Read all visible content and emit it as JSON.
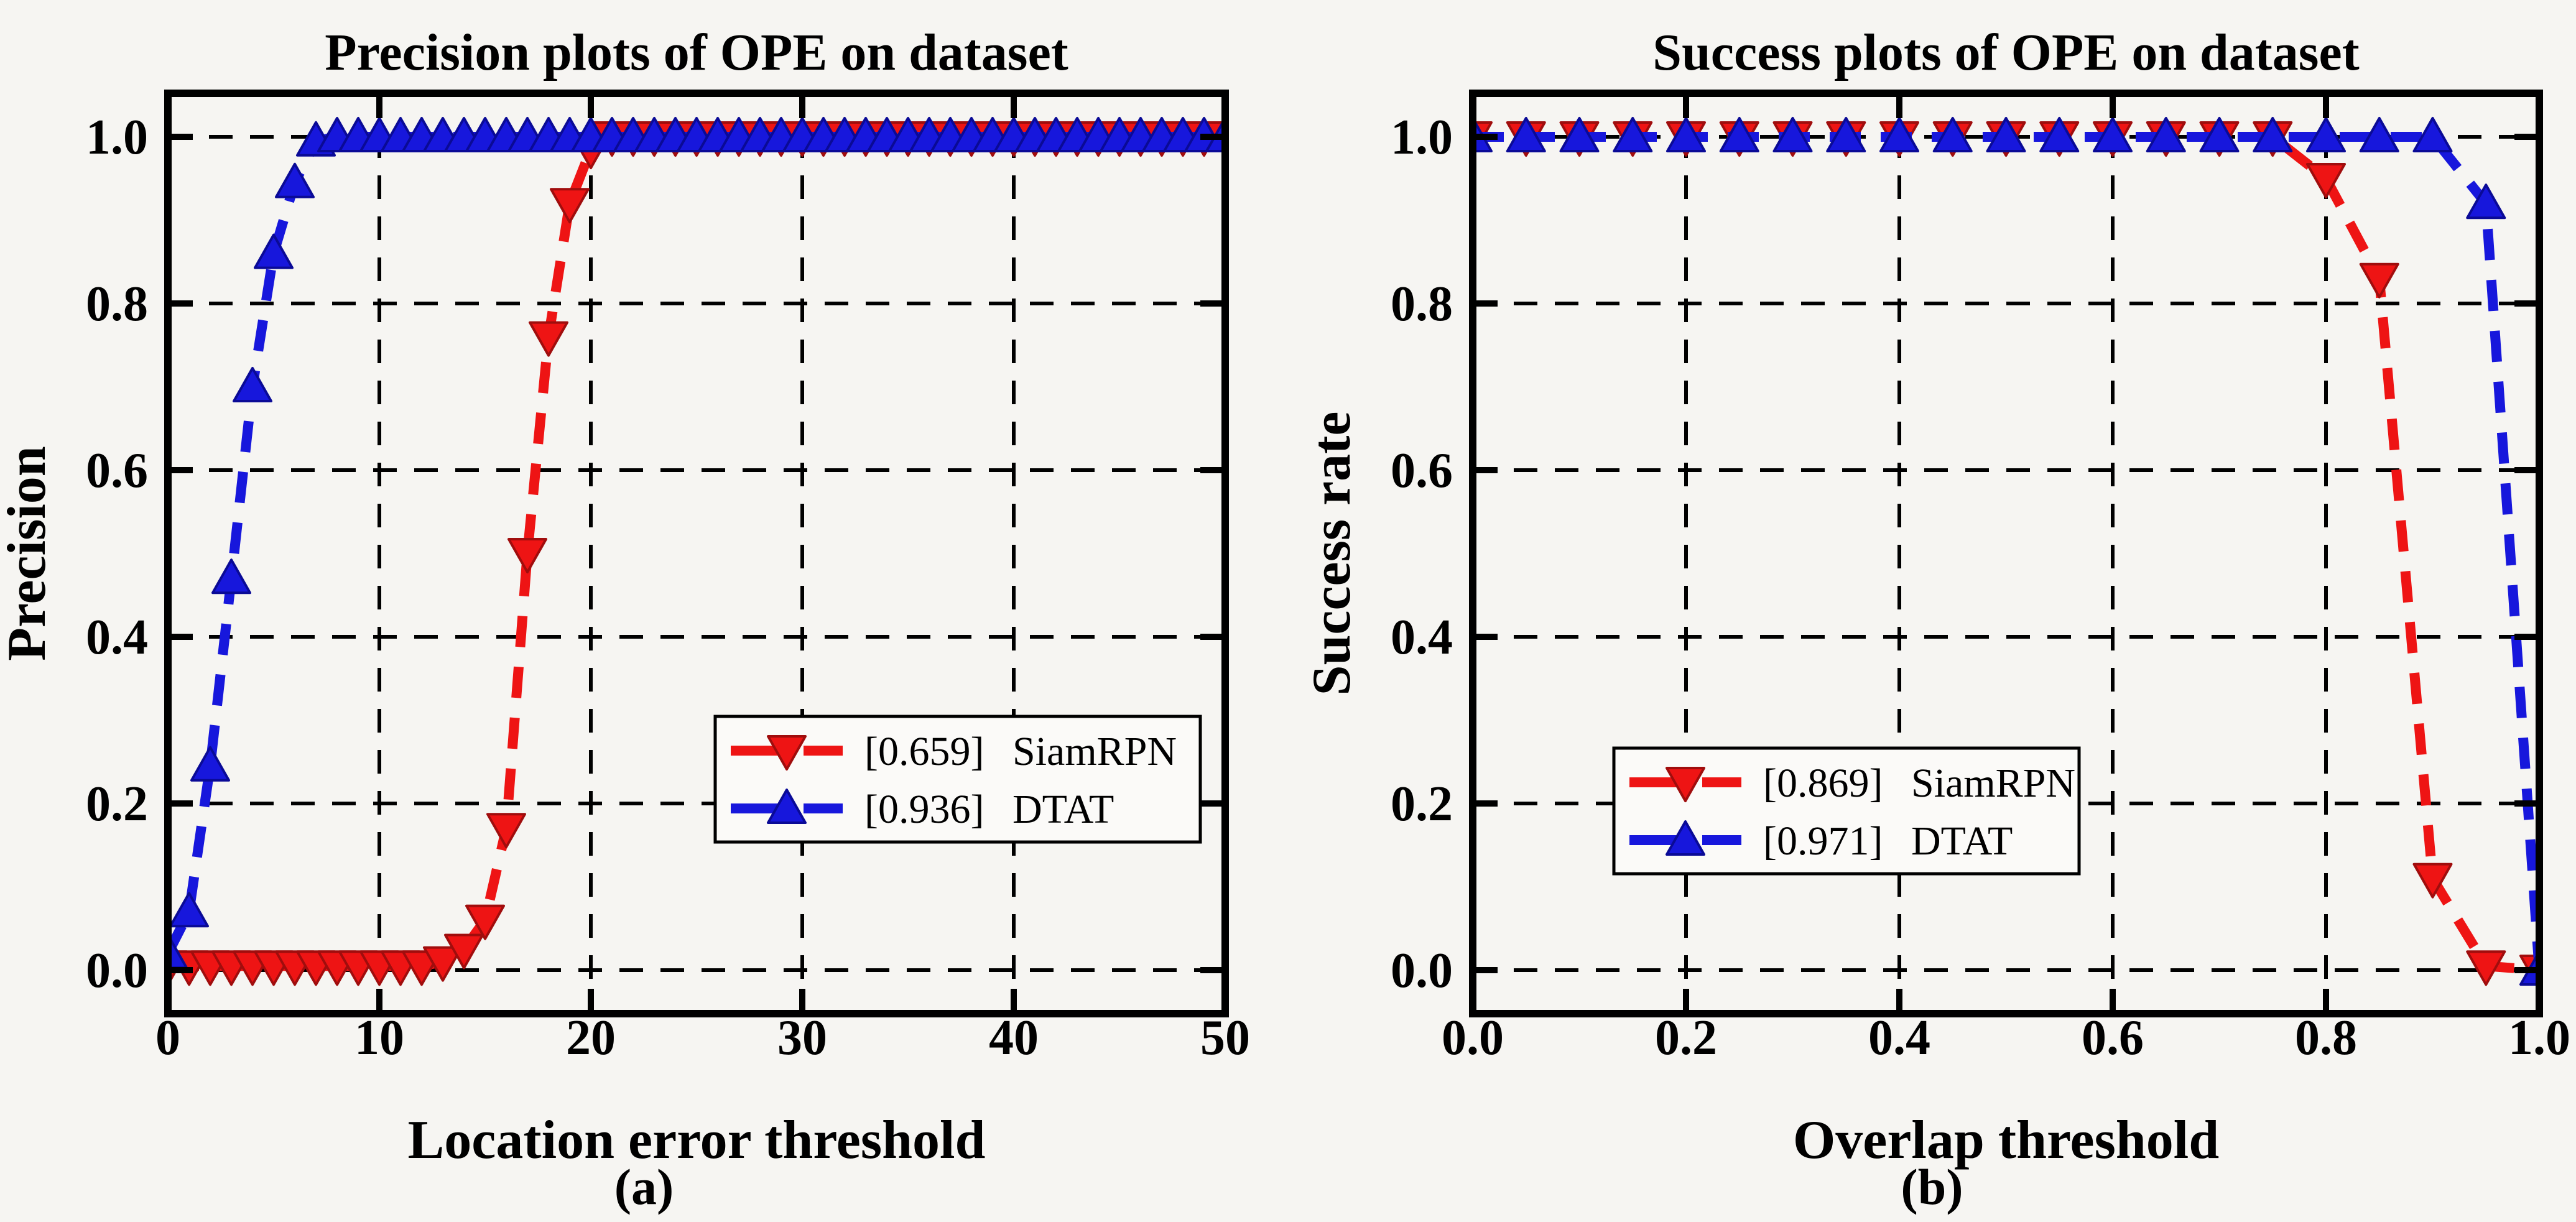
{
  "figure": {
    "background": "#f6f5f2",
    "accent_red": "#ee1414",
    "accent_blue": "#1717dc"
  },
  "chart_data": [
    {
      "type": "line",
      "title": "Precision plots of OPE on dataset",
      "xlabel": "Location error threshold",
      "ylabel": "Precision",
      "caption": "(a)",
      "xlim": [
        0,
        50
      ],
      "ylim": [
        0,
        1
      ],
      "x_ticks": [
        0,
        10,
        20,
        30,
        40,
        50
      ],
      "x_tick_labels": [
        "0",
        "10",
        "20",
        "30",
        "40",
        "50"
      ],
      "y_ticks": [
        0.0,
        0.2,
        0.4,
        0.6,
        0.8,
        1.0
      ],
      "y_tick_labels": [
        "0.0",
        "0.2",
        "0.4",
        "0.6",
        "0.8",
        "1.0"
      ],
      "grid": true,
      "legend_position": "lower right",
      "series": [
        {
          "name": "SiamRPN",
          "score_label": "[0.659]",
          "color": "#ee1414",
          "edge_color": "#a00d0d",
          "marker": "triangle-down",
          "x": [
            0,
            1,
            2,
            3,
            4,
            5,
            6,
            7,
            8,
            9,
            10,
            11,
            12,
            13,
            14,
            15,
            16,
            17,
            18,
            19,
            20,
            21,
            22,
            23,
            24,
            25,
            26,
            27,
            28,
            29,
            30,
            31,
            32,
            33,
            34,
            35,
            36,
            37,
            38,
            39,
            40,
            41,
            42,
            43,
            44,
            45,
            46,
            47,
            48,
            49,
            50
          ],
          "values": [
            0.005,
            0.005,
            0.005,
            0.005,
            0.005,
            0.005,
            0.005,
            0.005,
            0.005,
            0.005,
            0.005,
            0.005,
            0.005,
            0.01,
            0.025,
            0.06,
            0.17,
            0.5,
            0.76,
            0.92,
            0.985,
            1,
            1,
            1,
            1,
            1,
            1,
            1,
            1,
            1,
            1,
            1,
            1,
            1,
            1,
            1,
            1,
            1,
            1,
            1,
            1,
            1,
            1,
            1,
            1,
            1,
            1,
            1,
            1,
            1,
            1
          ]
        },
        {
          "name": "DTAT",
          "score_label": "[0.936]",
          "color": "#1717dc",
          "edge_color": "#0a0a96",
          "marker": "triangle-up",
          "x": [
            0,
            1,
            2,
            3,
            4,
            5,
            6,
            7,
            8,
            9,
            10,
            11,
            12,
            13,
            14,
            15,
            16,
            17,
            18,
            19,
            20,
            21,
            22,
            23,
            24,
            25,
            26,
            27,
            28,
            29,
            30,
            31,
            32,
            33,
            34,
            35,
            36,
            37,
            38,
            39,
            40,
            41,
            42,
            43,
            44,
            45,
            46,
            47,
            48,
            49,
            50
          ],
          "values": [
            0.02,
            0.07,
            0.245,
            0.47,
            0.7,
            0.86,
            0.945,
            0.995,
            1,
            1,
            1,
            1,
            1,
            1,
            1,
            1,
            1,
            1,
            1,
            1,
            1,
            1,
            1,
            1,
            1,
            1,
            1,
            1,
            1,
            1,
            1,
            1,
            1,
            1,
            1,
            1,
            1,
            1,
            1,
            1,
            1,
            1,
            1,
            1,
            1,
            1,
            1,
            1,
            1,
            1,
            1
          ]
        }
      ]
    },
    {
      "type": "line",
      "title": "Success plots of OPE on dataset",
      "xlabel": "Overlap threshold",
      "ylabel": "Success rate",
      "caption": "(b)",
      "xlim": [
        0,
        1
      ],
      "ylim": [
        0,
        1
      ],
      "x_ticks": [
        0.0,
        0.2,
        0.4,
        0.6,
        0.8,
        1.0
      ],
      "x_tick_labels": [
        "0.0",
        "0.2",
        "0.4",
        "0.6",
        "0.8",
        "1.0"
      ],
      "y_ticks": [
        0.0,
        0.2,
        0.4,
        0.6,
        0.8,
        1.0
      ],
      "y_tick_labels": [
        "0.0",
        "0.2",
        "0.4",
        "0.6",
        "0.8",
        "1.0"
      ],
      "grid": true,
      "legend_position": "lower center-left",
      "series": [
        {
          "name": "SiamRPN",
          "score_label": "[0.869]",
          "color": "#ee1414",
          "edge_color": "#a00d0d",
          "marker": "triangle-down",
          "x": [
            0,
            0.05,
            0.1,
            0.15,
            0.2,
            0.25,
            0.3,
            0.35,
            0.4,
            0.45,
            0.5,
            0.55,
            0.6,
            0.65,
            0.7,
            0.75,
            0.8,
            0.85,
            0.9,
            0.95,
            1.0
          ],
          "values": [
            1,
            1,
            1,
            1,
            1,
            1,
            1,
            1,
            1,
            1,
            1,
            1,
            1,
            1,
            1,
            1,
            0.95,
            0.83,
            0.11,
            0.005,
            0
          ]
        },
        {
          "name": "DTAT",
          "score_label": "[0.971]",
          "color": "#1717dc",
          "edge_color": "#0a0a96",
          "marker": "triangle-up",
          "x": [
            0,
            0.05,
            0.1,
            0.15,
            0.2,
            0.25,
            0.3,
            0.35,
            0.4,
            0.45,
            0.5,
            0.55,
            0.6,
            0.65,
            0.7,
            0.75,
            0.8,
            0.85,
            0.9,
            0.95,
            1.0
          ],
          "values": [
            1,
            1,
            1,
            1,
            1,
            1,
            1,
            1,
            1,
            1,
            1,
            1,
            1,
            1,
            1,
            1,
            1,
            1,
            1,
            0.92,
            0
          ]
        }
      ]
    }
  ]
}
